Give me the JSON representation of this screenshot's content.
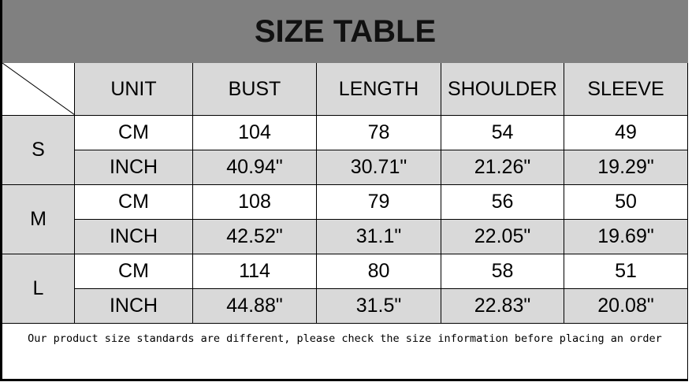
{
  "title": "SIZE TABLE",
  "headers": [
    "UNIT",
    "BUST",
    "LENGTH",
    "SHOULDER",
    "SLEEVE"
  ],
  "sizes": [
    {
      "size": "S",
      "rows": [
        [
          "CM",
          "104",
          "78",
          "54",
          "49"
        ],
        [
          "INCH",
          "40.94\"",
          "30.71\"",
          "21.26\"",
          "19.29\""
        ]
      ]
    },
    {
      "size": "M",
      "rows": [
        [
          "CM",
          "108",
          "79",
          "56",
          "50"
        ],
        [
          "INCH",
          "42.52\"",
          "31.1\"",
          "22.05\"",
          "19.69\""
        ]
      ]
    },
    {
      "size": "L",
      "rows": [
        [
          "CM",
          "114",
          "80",
          "58",
          "51"
        ],
        [
          "INCH",
          "44.88\"",
          "31.5\"",
          "22.83\"",
          "20.08\""
        ]
      ]
    }
  ],
  "note": "Our product size standards are different, please check the size information before placing an order"
}
